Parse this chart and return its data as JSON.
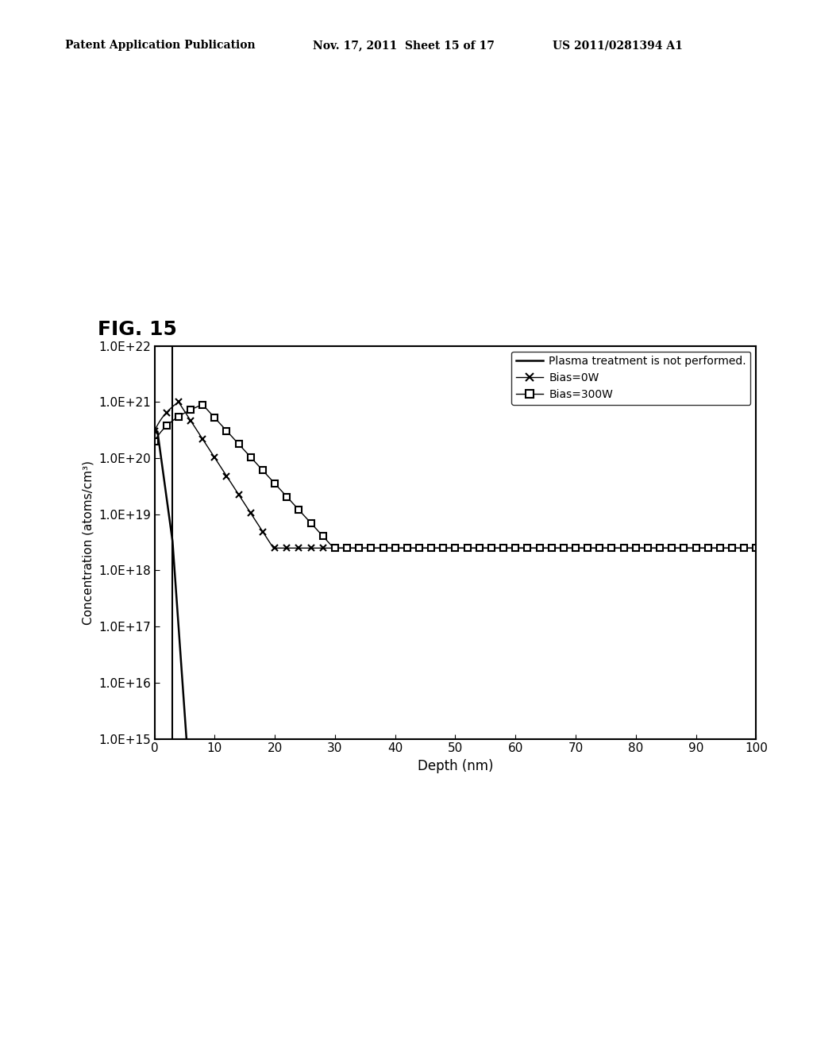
{
  "fig_label": "FIG. 15",
  "header_left": "Patent Application Publication",
  "header_mid": "Nov. 17, 2011  Sheet 15 of 17",
  "header_right": "US 2011/0281394 A1",
  "xlabel": "Depth (nm)",
  "ylabel": "Concentration (atoms/cm³)",
  "xlim": [
    0,
    100
  ],
  "ylim_exp_min": 15,
  "ylim_exp_max": 22,
  "xticks": [
    0,
    10,
    20,
    30,
    40,
    50,
    60,
    70,
    80,
    90,
    100
  ],
  "legend": [
    {
      "label": "Plasma treatment is not performed.",
      "linestyle": "-",
      "marker": "none",
      "color": "#000000"
    },
    {
      "label": "Bias=0W",
      "linestyle": "-",
      "marker": "x",
      "color": "#000000"
    },
    {
      "label": "Bias=300W",
      "linestyle": "-",
      "marker": "s",
      "color": "#000000"
    }
  ],
  "background_color": "#ffffff",
  "line_color": "#000000",
  "fig_bg": "#ffffff",
  "vline_x": 3.0
}
